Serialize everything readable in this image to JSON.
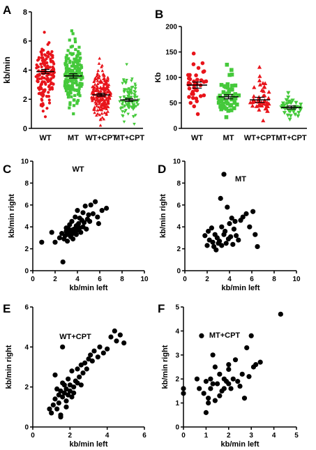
{
  "chart_data": [
    {
      "panel": "A",
      "type": "scatter",
      "title": "",
      "ylabel": "kb/min",
      "ylim": [
        0,
        8
      ],
      "yticks": [
        0,
        2,
        4,
        6,
        8
      ],
      "categories": [
        "WT",
        "MT",
        "WT+CPT",
        "MT+CPT"
      ],
      "series": [
        {
          "category": "WT",
          "color": "#e8141b",
          "marker": "circle",
          "mean": 3.9,
          "sem_range": [
            3.75,
            4.05
          ],
          "min": 0.8,
          "max": 6.6,
          "n": 160
        },
        {
          "category": "MT",
          "color": "#45c93b",
          "marker": "square",
          "mean": 3.6,
          "sem_range": [
            3.45,
            3.75
          ],
          "min": 1.0,
          "max": 6.7,
          "n": 180
        },
        {
          "category": "WT+CPT",
          "color": "#e8141b",
          "marker": "triangle-up",
          "mean": 2.3,
          "sem_range": [
            2.2,
            2.4
          ],
          "min": 0.2,
          "max": 4.8,
          "n": 220
        },
        {
          "category": "MT+CPT",
          "color": "#45c93b",
          "marker": "triangle-down",
          "mean": 1.95,
          "sem_range": [
            1.85,
            2.05
          ],
          "min": 0.3,
          "max": 4.4,
          "n": 110
        }
      ]
    },
    {
      "panel": "B",
      "type": "scatter",
      "title": "",
      "ylabel": "Kb",
      "ylim": [
        0,
        200
      ],
      "yticks": [
        0,
        50,
        100,
        150,
        200
      ],
      "categories": [
        "WT",
        "MT",
        "WT+CPT",
        "MT+CPT"
      ],
      "series": [
        {
          "category": "WT",
          "color": "#e8141b",
          "marker": "circle",
          "mean": 85,
          "sem_range": [
            79,
            91
          ],
          "min": 28,
          "max": 147,
          "n": 40
        },
        {
          "category": "MT",
          "color": "#45c93b",
          "marker": "square",
          "mean": 62,
          "sem_range": [
            58,
            66
          ],
          "min": 22,
          "max": 125,
          "n": 50
        },
        {
          "category": "WT+CPT",
          "color": "#e8141b",
          "marker": "triangle-up",
          "mean": 56,
          "sem_range": [
            51,
            61
          ],
          "min": 15,
          "max": 120,
          "n": 45
        },
        {
          "category": "MT+CPT",
          "color": "#45c93b",
          "marker": "triangle-down",
          "mean": 41,
          "sem_range": [
            38,
            44
          ],
          "min": 18,
          "max": 70,
          "n": 40
        }
      ]
    },
    {
      "panel": "C",
      "type": "scatter",
      "title": "WT",
      "xlabel": "kb/min left",
      "ylabel": "kb/min right",
      "xlim": [
        0,
        10
      ],
      "ylim": [
        0,
        10
      ],
      "xticks": [
        0,
        2,
        4,
        6,
        8,
        10
      ],
      "yticks": [
        0,
        2,
        4,
        6,
        8,
        10
      ],
      "x": [
        0.8,
        1.7,
        2.0,
        2.4,
        2.6,
        2.7,
        2.8,
        2.9,
        3.0,
        3.0,
        3.1,
        3.2,
        3.2,
        3.3,
        3.3,
        3.4,
        3.5,
        3.5,
        3.6,
        3.6,
        3.7,
        3.8,
        3.8,
        3.9,
        3.9,
        4.0,
        4.0,
        4.1,
        4.2,
        4.2,
        4.3,
        4.4,
        4.5,
        4.5,
        4.6,
        4.7,
        4.8,
        4.9,
        5.0,
        5.1,
        5.2,
        5.4,
        5.6,
        5.8,
        5.9,
        6.2,
        6.6
      ],
      "y": [
        2.6,
        3.5,
        2.6,
        3.0,
        3.4,
        0.8,
        2.9,
        3.2,
        3.6,
        3.9,
        2.7,
        3.3,
        3.8,
        3.5,
        4.2,
        3.1,
        3.7,
        4.5,
        2.9,
        3.4,
        3.8,
        3.6,
        4.9,
        3.3,
        4.1,
        3.7,
        5.5,
        4.3,
        3.9,
        4.8,
        3.5,
        4.6,
        4.0,
        5.3,
        4.4,
        5.9,
        3.8,
        4.7,
        5.1,
        4.5,
        6.0,
        5.2,
        6.3,
        4.9,
        4.3,
        5.5,
        5.7
      ]
    },
    {
      "panel": "D",
      "type": "scatter",
      "title": "MT",
      "xlabel": "kb/min left",
      "ylabel": "kb/min right",
      "xlim": [
        0,
        10
      ],
      "ylim": [
        0,
        10
      ],
      "xticks": [
        0,
        2,
        4,
        6,
        8,
        10
      ],
      "yticks": [
        0,
        2,
        4,
        6,
        8,
        10
      ],
      "x": [
        1.8,
        2.0,
        2.1,
        2.2,
        2.4,
        2.5,
        2.6,
        2.7,
        2.8,
        2.9,
        3.0,
        3.1,
        3.2,
        3.3,
        3.3,
        3.5,
        3.5,
        3.6,
        3.7,
        3.8,
        3.9,
        4.0,
        4.1,
        4.2,
        4.3,
        4.4,
        4.5,
        4.6,
        4.8,
        5.0,
        5.2,
        5.5,
        5.8,
        6.1,
        6.3,
        6.5
      ],
      "y": [
        3.2,
        2.3,
        3.6,
        2.8,
        3.9,
        2.6,
        2.2,
        3.3,
        1.9,
        3.0,
        2.5,
        2.7,
        6.6,
        4.0,
        2.3,
        8.8,
        3.3,
        3.6,
        2.5,
        5.8,
        2.9,
        4.3,
        3.1,
        4.8,
        2.4,
        3.8,
        4.5,
        3.2,
        2.8,
        4.6,
        4.9,
        5.2,
        4.0,
        5.4,
        3.3,
        2.2
      ]
    },
    {
      "panel": "E",
      "type": "scatter",
      "title": "WT+CPT",
      "xlabel": "kb/min left",
      "ylabel": "kb/min right",
      "xlim": [
        0,
        6
      ],
      "ylim": [
        0,
        6
      ],
      "xticks": [
        0,
        2,
        4,
        6
      ],
      "yticks": [
        0,
        2,
        4,
        6
      ],
      "x": [
        0.9,
        1.0,
        1.1,
        1.2,
        1.2,
        1.3,
        1.4,
        1.4,
        1.5,
        1.5,
        1.6,
        1.6,
        1.7,
        1.7,
        1.8,
        1.8,
        1.9,
        1.9,
        2.0,
        2.0,
        2.1,
        2.1,
        2.2,
        2.2,
        2.3,
        2.4,
        2.4,
        2.5,
        2.6,
        2.7,
        2.8,
        2.9,
        3.0,
        3.1,
        3.2,
        3.3,
        3.5,
        3.6,
        3.8,
        4.0,
        4.2,
        4.4,
        4.5,
        4.7,
        4.9,
        1.3,
        1.6,
        2.6,
        1.5,
        1.8
      ],
      "y": [
        0.9,
        0.7,
        1.1,
        1.4,
        2.6,
        0.9,
        1.6,
        1.2,
        1.8,
        0.6,
        1.5,
        4.0,
        1.7,
        2.1,
        1.3,
        1.9,
        1.6,
        2.4,
        1.8,
        2.1,
        1.5,
        2.8,
        2.0,
        1.7,
        2.3,
        2.2,
        2.9,
        2.5,
        3.1,
        2.7,
        3.2,
        2.9,
        3.4,
        3.6,
        3.3,
        3.8,
        3.5,
        4.0,
        3.7,
        3.9,
        4.5,
        4.8,
        4.3,
        4.6,
        4.2,
        1.9,
        2.2,
        2.1,
        0.5,
        1.0
      ]
    },
    {
      "panel": "F",
      "type": "scatter",
      "title": "MT+CPT",
      "xlabel": "kb/min left",
      "ylabel": "kb/min right",
      "xlim": [
        0,
        5
      ],
      "ylim": [
        0,
        5
      ],
      "xticks": [
        0,
        1,
        2,
        3,
        4,
        5
      ],
      "yticks": [
        0,
        1,
        2,
        3,
        4,
        5
      ],
      "x": [
        0.0,
        0.0,
        0.6,
        0.7,
        0.8,
        0.9,
        1.0,
        1.0,
        1.1,
        1.1,
        1.2,
        1.2,
        1.3,
        1.4,
        1.4,
        1.5,
        1.6,
        1.6,
        1.7,
        1.8,
        1.8,
        1.9,
        2.0,
        2.0,
        2.1,
        2.2,
        2.3,
        2.4,
        2.5,
        2.6,
        2.7,
        2.8,
        2.9,
        3.0,
        3.1,
        3.2,
        3.4,
        4.3,
        2.0,
        1.3
      ],
      "y": [
        1.6,
        1.4,
        2.0,
        1.6,
        3.8,
        1.4,
        1.9,
        0.6,
        1.2,
        1.0,
        2.0,
        1.6,
        3.0,
        2.5,
        1.1,
        1.8,
        1.3,
        2.2,
        1.5,
        2.0,
        1.6,
        1.9,
        2.4,
        1.8,
        1.6,
        2.0,
        2.8,
        1.9,
        1.7,
        2.2,
        1.2,
        3.3,
        2.1,
        3.8,
        2.5,
        2.6,
        2.7,
        4.7,
        2.6,
        1.8
      ]
    }
  ]
}
